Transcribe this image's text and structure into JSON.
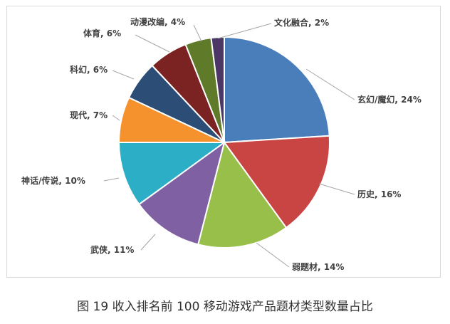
{
  "caption": "图 19  收入排名前 100 移动游戏产品题材类型数量占比",
  "chart_data": {
    "type": "pie",
    "title": "",
    "slices": [
      {
        "label": "玄幻/魔幻",
        "value": 24,
        "display": "玄幻/魔幻, 24%",
        "color": "#4a7ebb"
      },
      {
        "label": "历史",
        "value": 16,
        "display": "历史, 16%",
        "color": "#c94543"
      },
      {
        "label": "弱题材",
        "value": 14,
        "display": "弱题材, 14%",
        "color": "#97bf4a"
      },
      {
        "label": "武侠",
        "value": 11,
        "display": "武侠, 11%",
        "color": "#7e60a3"
      },
      {
        "label": "神话/传说",
        "value": 10,
        "display": "神话/传说, 10%",
        "color": "#2caec6"
      },
      {
        "label": "现代",
        "value": 7,
        "display": "现代, 7%",
        "color": "#f5922e"
      },
      {
        "label": "科幻",
        "value": 6,
        "display": "科幻, 6%",
        "color": "#2c4d75"
      },
      {
        "label": "体育",
        "value": 6,
        "display": "体育, 6%",
        "color": "#7b2223"
      },
      {
        "label": "动漫改编",
        "value": 4,
        "display": "动漫改编, 4%",
        "color": "#5f7b29"
      },
      {
        "label": "文化融合",
        "value": 2,
        "display": "文化融合, 2%",
        "color": "#4b3666"
      }
    ]
  }
}
